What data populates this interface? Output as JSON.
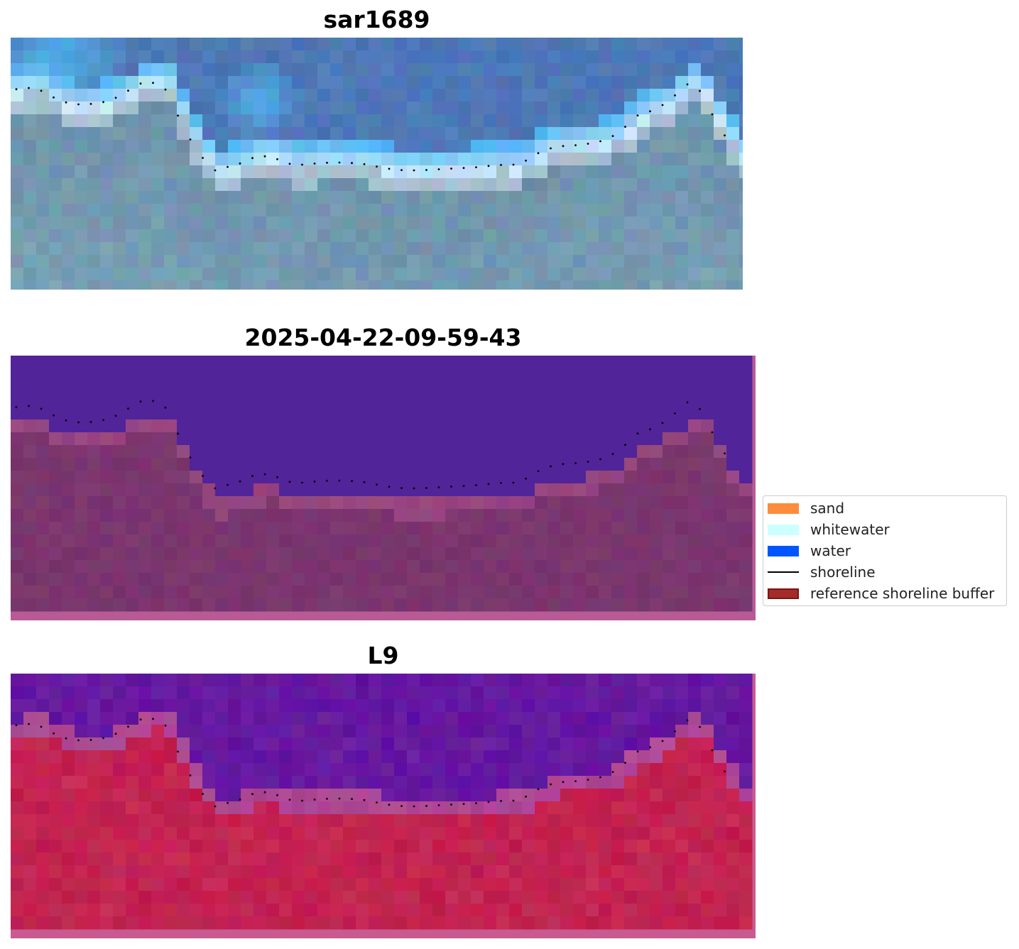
{
  "panels": [
    {
      "title": "sar1689",
      "kind": "rgb"
    },
    {
      "title": "2025-04-22-09-59-43",
      "kind": "classification"
    },
    {
      "title": "L9",
      "kind": "index"
    }
  ],
  "legend": {
    "items": [
      {
        "label": "sand",
        "color": "#ff8c3a",
        "type": "patch"
      },
      {
        "label": "whitewater",
        "color": "#ccffff",
        "type": "patch"
      },
      {
        "label": "water",
        "color": "#0055ff",
        "type": "patch"
      },
      {
        "label": "shoreline",
        "color": "#000000",
        "type": "line"
      },
      {
        "label": "reference shoreline buffer",
        "color": "#a52a2a",
        "type": "patch",
        "edge": "#7a1515"
      }
    ]
  },
  "colors": {
    "rgb_water_deep": "#4d78b6",
    "rgb_water_light": "#4fb5f0",
    "rgb_whitewater": "#eef6fb",
    "rgb_land": "#6e92ac",
    "class_water": "#52249a",
    "class_buffer": "#7a366e",
    "class_buffer_edge": "#b85a94",
    "index_water": "#6a1ea0",
    "index_land": "#c42a56",
    "index_edge": "#c95a90",
    "shoreline_dots": "#000000"
  }
}
